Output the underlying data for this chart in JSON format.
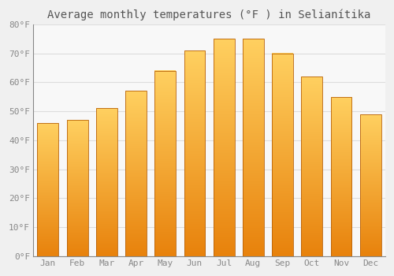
{
  "title": "Average monthly temperatures (°F ) in Selianítika",
  "months": [
    "Jan",
    "Feb",
    "Mar",
    "Apr",
    "May",
    "Jun",
    "Jul",
    "Aug",
    "Sep",
    "Oct",
    "Nov",
    "Dec"
  ],
  "values": [
    46,
    47,
    51,
    57,
    64,
    71,
    75,
    75,
    70,
    62,
    55,
    49
  ],
  "bar_color_top": "#FFD060",
  "bar_color_bottom": "#E8820C",
  "bar_edge_color": "#B8620A",
  "ylim": [
    0,
    80
  ],
  "yticks": [
    0,
    10,
    20,
    30,
    40,
    50,
    60,
    70,
    80
  ],
  "ytick_labels": [
    "0°F",
    "10°F",
    "20°F",
    "30°F",
    "40°F",
    "50°F",
    "60°F",
    "70°F",
    "80°F"
  ],
  "background_color": "#f0f0f0",
  "plot_bg_color": "#f8f8f8",
  "grid_color": "#dddddd",
  "title_fontsize": 10,
  "tick_fontsize": 8,
  "tick_color": "#888888",
  "axis_color": "#888888"
}
